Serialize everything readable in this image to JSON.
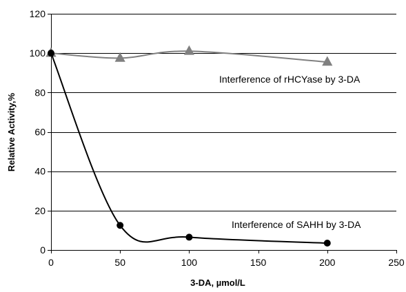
{
  "chart_data": {
    "type": "line",
    "xlabel": "3-DA, µmol/L",
    "ylabel": "Relative Activity,%",
    "xlim": [
      0,
      250
    ],
    "ylim": [
      0,
      120
    ],
    "x_ticks": [
      0,
      50,
      100,
      150,
      200,
      250
    ],
    "y_ticks": [
      0,
      20,
      40,
      60,
      80,
      100,
      120
    ],
    "grid": "horizontal",
    "series": [
      {
        "name": "Interference of rHCYase by 3-DA",
        "marker": "triangle",
        "color": "#808080",
        "x": [
          0,
          50,
          100,
          200
        ],
        "y": [
          100,
          97.5,
          101,
          95.5
        ]
      },
      {
        "name": "Interference of SAHH by 3-DA",
        "marker": "circle",
        "color": "#000000",
        "x": [
          0,
          50,
          100,
          200
        ],
        "y": [
          100,
          12.5,
          6.5,
          3.5
        ]
      }
    ]
  }
}
